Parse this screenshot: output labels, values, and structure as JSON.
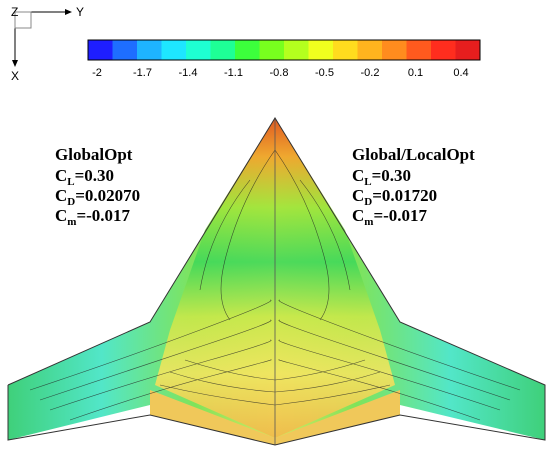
{
  "axes_triad": {
    "z_label": "Z",
    "y_label": "Y",
    "x_label": "X"
  },
  "colorbar": {
    "ticks": [
      "-2",
      "-1.7",
      "-1.4",
      "-1.1",
      "-0.8",
      "-0.5",
      "-0.2",
      "0.1",
      "0.4"
    ],
    "colors": [
      "#1e1eff",
      "#1e6eff",
      "#1eb4ff",
      "#1ee6ff",
      "#1effd2",
      "#1eff96",
      "#3cff3c",
      "#78ff1e",
      "#b4ff1e",
      "#f0ff1e",
      "#ffdc1e",
      "#ffb41e",
      "#ff8c1e",
      "#ff5a1e",
      "#ff2d1e",
      "#e61e1e"
    ]
  },
  "left_panel": {
    "title": "GlobalOpt",
    "cl_base": "C",
    "cl_sub": "L",
    "cl_value": "=0.30",
    "cd_base": "C",
    "cd_sub": "D",
    "cd_value": "=0.02070",
    "cm_base": "C",
    "cm_sub": "m",
    "cm_value": "=-0.017"
  },
  "right_panel": {
    "title": "Global/LocalOpt",
    "cl_base": "C",
    "cl_sub": "L",
    "cl_value": "=0.30",
    "cd_base": "C",
    "cd_sub": "D",
    "cd_value": "=0.01720",
    "cm_base": "C",
    "cm_sub": "m",
    "cm_value": "=-0.017"
  }
}
